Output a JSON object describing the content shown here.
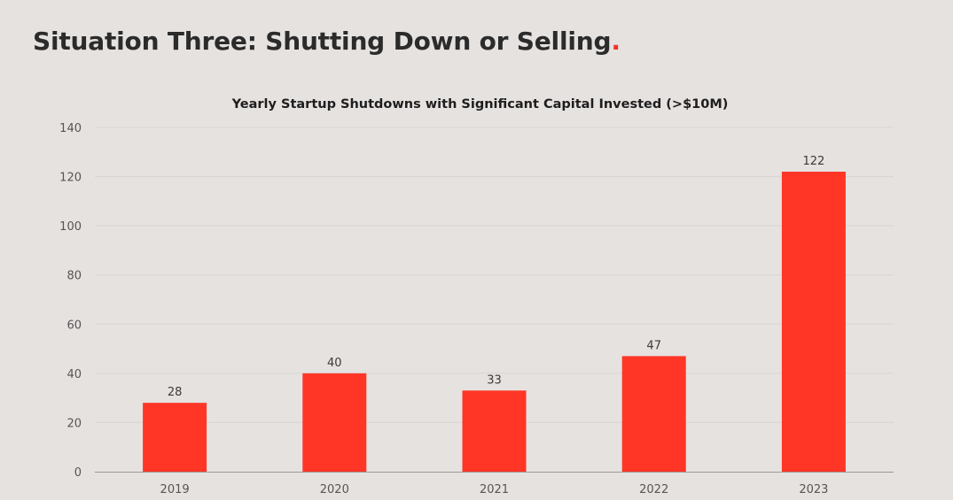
{
  "slide": {
    "title": "Situation Three: Shutting Down or Selling",
    "title_dot": "."
  },
  "colors": {
    "background": "#e6e2e0",
    "bar": "#ff3626",
    "accent_dot": "#f0322a",
    "gridline": "#d9d5d3",
    "axis_line": "#9a9a9a",
    "tick_text": "#555555",
    "label_text": "#3a3a3a"
  },
  "chart_data": {
    "type": "bar",
    "title": "Yearly Startup Shutdowns with Significant Capital Invested (>$10M)",
    "xlabel": "",
    "ylabel": "",
    "categories": [
      "2019",
      "2020",
      "2021",
      "2022",
      "2023"
    ],
    "values": [
      28,
      40,
      33,
      47,
      122
    ],
    "data_labels": [
      "28",
      "40",
      "33",
      "47",
      "122"
    ],
    "ylim": [
      0,
      140
    ],
    "yticks": [
      0,
      20,
      40,
      60,
      80,
      100,
      120,
      140
    ],
    "grid": true,
    "legend": "none"
  }
}
